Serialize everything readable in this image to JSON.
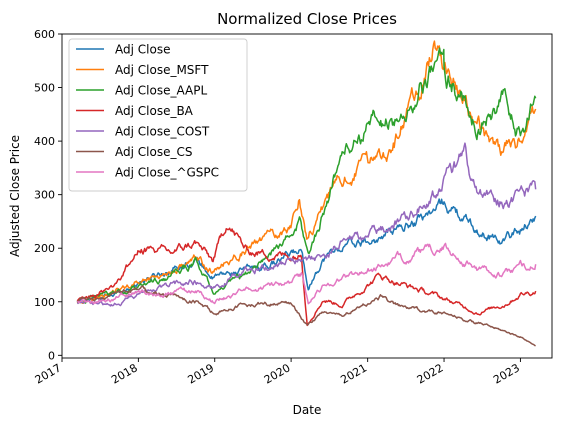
{
  "chart_data": {
    "type": "line",
    "title": "Normalized Close Prices",
    "xlabel": "Date",
    "ylabel": "Adjusted Close Price",
    "ylim": [
      -5,
      600
    ],
    "xlim": [
      "2017-01-01",
      "2023-06-01"
    ],
    "grid": false,
    "legend_position": "top-left",
    "y_ticks": [
      0,
      100,
      200,
      300,
      400,
      500,
      600
    ],
    "x_ticks": [
      {
        "label": "2017",
        "date": "2017-01-01"
      },
      {
        "label": "2018",
        "date": "2018-01-01"
      },
      {
        "label": "2019",
        "date": "2019-01-01"
      },
      {
        "label": "2020",
        "date": "2020-01-01"
      },
      {
        "label": "2021",
        "date": "2021-01-01"
      },
      {
        "label": "2022",
        "date": "2022-01-01"
      },
      {
        "label": "2023",
        "date": "2023-01-01"
      }
    ],
    "series": [
      {
        "name": "Adj Close",
        "color": "#1f77b4",
        "points": [
          [
            "2017-03-15",
            100
          ],
          [
            "2017-09-01",
            112
          ],
          [
            "2018-01-15",
            140
          ],
          [
            "2018-06-01",
            160
          ],
          [
            "2018-10-01",
            180
          ],
          [
            "2018-12-24",
            145
          ],
          [
            "2019-06-01",
            160
          ],
          [
            "2019-10-01",
            170
          ],
          [
            "2020-01-15",
            190
          ],
          [
            "2020-02-20",
            195
          ],
          [
            "2020-03-23",
            130
          ],
          [
            "2020-06-01",
            180
          ],
          [
            "2020-09-01",
            205
          ],
          [
            "2021-01-15",
            210
          ],
          [
            "2021-06-01",
            235
          ],
          [
            "2021-12-01",
            275
          ],
          [
            "2022-01-01",
            285
          ],
          [
            "2022-06-15",
            230
          ],
          [
            "2022-10-15",
            215
          ],
          [
            "2023-01-01",
            235
          ],
          [
            "2023-03-15",
            260
          ]
        ]
      },
      {
        "name": "Adj Close_MSFT",
        "color": "#ff7f0e",
        "points": [
          [
            "2017-03-15",
            100
          ],
          [
            "2017-09-01",
            115
          ],
          [
            "2018-01-15",
            140
          ],
          [
            "2018-06-01",
            155
          ],
          [
            "2018-10-01",
            180
          ],
          [
            "2018-12-24",
            155
          ],
          [
            "2019-06-01",
            200
          ],
          [
            "2019-12-31",
            240
          ],
          [
            "2020-02-10",
            300
          ],
          [
            "2020-03-16",
            220
          ],
          [
            "2020-06-01",
            280
          ],
          [
            "2020-09-01",
            330
          ],
          [
            "2021-01-15",
            360
          ],
          [
            "2021-06-01",
            410
          ],
          [
            "2021-11-20",
            570
          ],
          [
            "2022-01-01",
            540
          ],
          [
            "2022-06-15",
            430
          ],
          [
            "2022-10-15",
            380
          ],
          [
            "2023-01-01",
            400
          ],
          [
            "2023-03-15",
            460
          ]
        ]
      },
      {
        "name": "Adj Close_AAPL",
        "color": "#2ca02c",
        "points": [
          [
            "2017-03-15",
            100
          ],
          [
            "2017-09-01",
            115
          ],
          [
            "2018-01-15",
            130
          ],
          [
            "2018-06-01",
            145
          ],
          [
            "2018-10-01",
            175
          ],
          [
            "2019-01-03",
            115
          ],
          [
            "2019-06-01",
            150
          ],
          [
            "2019-12-31",
            225
          ],
          [
            "2020-02-10",
            250
          ],
          [
            "2020-03-23",
            185
          ],
          [
            "2020-06-01",
            265
          ],
          [
            "2020-09-01",
            380
          ],
          [
            "2021-01-15",
            430
          ],
          [
            "2021-06-01",
            440
          ],
          [
            "2021-12-31",
            550
          ],
          [
            "2022-01-01",
            540
          ],
          [
            "2022-06-15",
            430
          ],
          [
            "2022-10-15",
            470
          ],
          [
            "2023-01-01",
            410
          ],
          [
            "2023-03-15",
            480
          ]
        ]
      },
      {
        "name": "Adj Close_BA",
        "color": "#d62728",
        "points": [
          [
            "2017-03-15",
            100
          ],
          [
            "2017-09-01",
            130
          ],
          [
            "2018-01-15",
            200
          ],
          [
            "2018-06-01",
            190
          ],
          [
            "2018-10-01",
            210
          ],
          [
            "2018-12-24",
            175
          ],
          [
            "2019-03-01",
            250
          ],
          [
            "2019-06-01",
            195
          ],
          [
            "2019-12-31",
            185
          ],
          [
            "2020-02-20",
            190
          ],
          [
            "2020-03-18",
            60
          ],
          [
            "2020-06-01",
            105
          ],
          [
            "2020-09-01",
            95
          ],
          [
            "2021-03-01",
            150
          ],
          [
            "2021-06-01",
            135
          ],
          [
            "2021-12-01",
            110
          ],
          [
            "2022-06-15",
            80
          ],
          [
            "2022-10-15",
            95
          ],
          [
            "2023-01-01",
            115
          ],
          [
            "2023-03-15",
            120
          ]
        ]
      },
      {
        "name": "Adj Close_COST",
        "color": "#9467bd",
        "points": [
          [
            "2017-03-15",
            100
          ],
          [
            "2017-09-01",
            95
          ],
          [
            "2018-01-15",
            115
          ],
          [
            "2018-06-01",
            130
          ],
          [
            "2018-10-01",
            140
          ],
          [
            "2018-12-24",
            125
          ],
          [
            "2019-06-01",
            160
          ],
          [
            "2019-12-31",
            175
          ],
          [
            "2020-03-23",
            180
          ],
          [
            "2020-06-01",
            185
          ],
          [
            "2020-09-01",
            210
          ],
          [
            "2021-01-15",
            225
          ],
          [
            "2021-06-01",
            250
          ],
          [
            "2021-12-01",
            310
          ],
          [
            "2022-04-15",
            370
          ],
          [
            "2022-06-15",
            295
          ],
          [
            "2022-10-15",
            290
          ],
          [
            "2023-01-01",
            300
          ],
          [
            "2023-03-15",
            310
          ]
        ]
      },
      {
        "name": "Adj Close_CS",
        "color": "#8c564b",
        "points": [
          [
            "2017-03-15",
            100
          ],
          [
            "2017-09-01",
            110
          ],
          [
            "2018-01-15",
            125
          ],
          [
            "2018-06-01",
            110
          ],
          [
            "2018-10-01",
            100
          ],
          [
            "2018-12-24",
            80
          ],
          [
            "2019-06-01",
            95
          ],
          [
            "2019-12-31",
            100
          ],
          [
            "2020-03-18",
            55
          ],
          [
            "2020-06-01",
            80
          ],
          [
            "2020-09-01",
            75
          ],
          [
            "2021-01-15",
            100
          ],
          [
            "2021-03-15",
            110
          ],
          [
            "2021-06-01",
            90
          ],
          [
            "2021-12-01",
            80
          ],
          [
            "2022-06-15",
            60
          ],
          [
            "2022-10-15",
            45
          ],
          [
            "2023-01-01",
            35
          ],
          [
            "2023-03-15",
            18
          ]
        ]
      },
      {
        "name": "Adj Close_^GSPC",
        "color": "#e377c2",
        "points": [
          [
            "2017-03-15",
            100
          ],
          [
            "2017-09-01",
            105
          ],
          [
            "2018-01-15",
            120
          ],
          [
            "2018-06-01",
            115
          ],
          [
            "2018-10-01",
            122
          ],
          [
            "2018-12-24",
            100
          ],
          [
            "2019-06-01",
            120
          ],
          [
            "2019-12-31",
            135
          ],
          [
            "2020-02-20",
            145
          ],
          [
            "2020-03-23",
            95
          ],
          [
            "2020-06-01",
            130
          ],
          [
            "2020-09-01",
            145
          ],
          [
            "2021-01-15",
            160
          ],
          [
            "2021-06-01",
            180
          ],
          [
            "2021-12-31",
            200
          ],
          [
            "2022-06-15",
            160
          ],
          [
            "2022-10-15",
            150
          ],
          [
            "2023-01-01",
            165
          ],
          [
            "2023-03-15",
            170
          ]
        ]
      }
    ]
  }
}
